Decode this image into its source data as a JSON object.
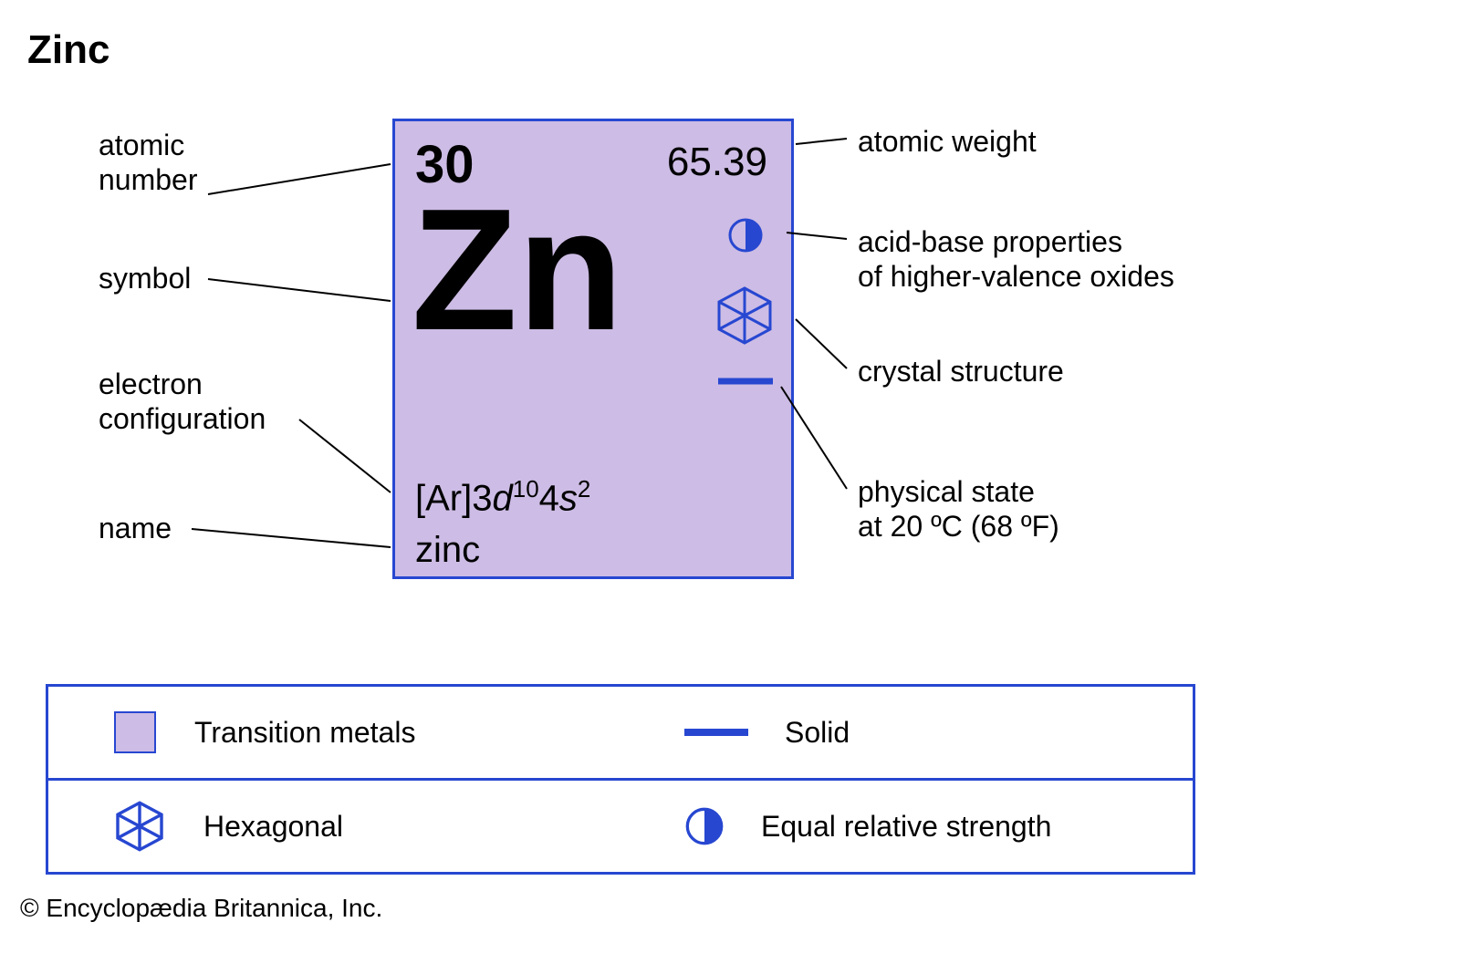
{
  "title": "Zinc",
  "tile": {
    "atomic_number": "30",
    "atomic_weight": "65.39",
    "symbol": "Zn",
    "electron_configuration": "[Ar]3d¹⁰4s²",
    "name": "zinc",
    "fill_color": "#cdbce5",
    "border_color": "#2747d1",
    "text_color": "#000000",
    "accent_color": "#2747d1"
  },
  "callouts": {
    "atomic_number": "atomic\nnumber",
    "symbol": "symbol",
    "electron_configuration": "electron\nconfiguration",
    "name": "name",
    "atomic_weight": "atomic weight",
    "acid_base": "acid-base properties\nof higher-valence oxides",
    "crystal_structure": "crystal structure",
    "physical_state": "physical state\nat 20 ºC (68 ºF)"
  },
  "legend": {
    "border_color": "#2747d1",
    "items": [
      {
        "icon": "square-fill",
        "label": "Transition metals"
      },
      {
        "icon": "solid-line",
        "label": "Solid"
      },
      {
        "icon": "hexagon-icon",
        "label": "Hexagonal"
      },
      {
        "icon": "half-circle",
        "label": "Equal relative strength"
      }
    ],
    "square_fill_color": "#cdbce5",
    "accent_color": "#2747d1"
  },
  "credit": "© Encyclopædia Britannica, Inc.",
  "styling": {
    "background": "#ffffff",
    "label_font_size": 32,
    "title_font_size": 44,
    "symbol_font_size": 190,
    "line_color": "#000000",
    "line_width": 2
  }
}
